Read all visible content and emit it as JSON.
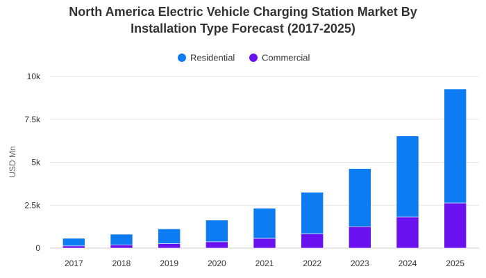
{
  "chart_data": {
    "type": "bar",
    "stacked": true,
    "title_lines": [
      "North America Electric Vehicle Charging Station Market By",
      "Installation Type Forecast (2017-2025)"
    ],
    "xlabel": "",
    "ylabel": "USD Mn",
    "categories": [
      "2017",
      "2018",
      "2019",
      "2020",
      "2021",
      "2022",
      "2023",
      "2024",
      "2025"
    ],
    "series": [
      {
        "name": "Commercial",
        "color": "#6a11f0",
        "values": [
          130,
          190,
          260,
          370,
          570,
          830,
          1250,
          1820,
          2630
        ]
      },
      {
        "name": "Residential",
        "color": "#0d7bf2",
        "values": [
          440,
          620,
          860,
          1260,
          1750,
          2420,
          3380,
          4710,
          6640
        ]
      }
    ],
    "legend_order": [
      "Residential",
      "Commercial"
    ],
    "legend_position": "top-center",
    "ylim": [
      0,
      10000
    ],
    "yticks": [
      0,
      2500,
      5000,
      7500,
      10000
    ],
    "ytick_labels": [
      "0",
      "2.5k",
      "5k",
      "7.5k",
      "10k"
    ],
    "grid": true
  }
}
